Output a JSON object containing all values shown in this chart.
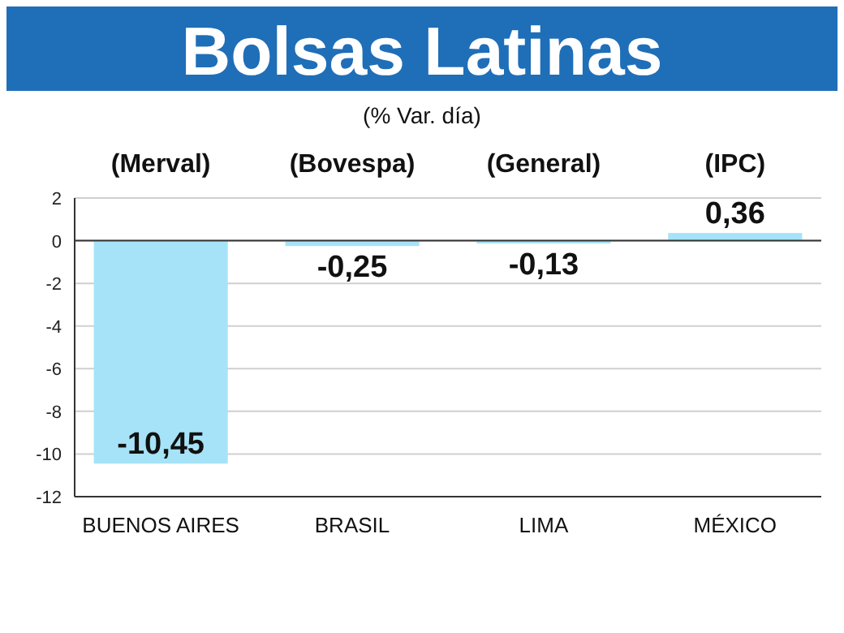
{
  "chart_data": {
    "type": "bar",
    "title": "Bolsas Latinas",
    "subtitle": "(% Var. día)",
    "categories": [
      "BUENOS AIRES",
      "BRASIL",
      "LIMA",
      "MÉXICO"
    ],
    "values": [
      -10.45,
      -0.25,
      -0.13,
      0.36
    ],
    "value_labels": [
      "-10,45",
      "-0,25",
      "-0,13",
      "0,36"
    ],
    "color": "#a6e3f8",
    "annotations": [
      "(Merval)",
      "(Bovespa)",
      "(General)",
      "(IPC)"
    ],
    "ylim": [
      -12,
      2
    ],
    "yticks": [
      2,
      0,
      -2,
      -4,
      -6,
      -8,
      -10,
      -12
    ],
    "grid": "y"
  }
}
